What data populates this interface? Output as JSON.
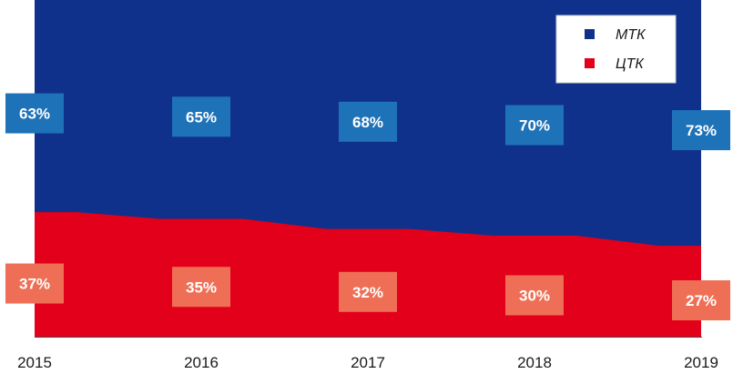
{
  "chart_data": {
    "type": "area",
    "stacked": true,
    "percent": true,
    "title": "",
    "xlabel": "",
    "ylabel": "",
    "ylim": [
      0,
      100
    ],
    "grid": false,
    "legend": "top-right",
    "x": [
      "2015",
      "2016",
      "2017",
      "2018",
      "2019"
    ],
    "series": [
      {
        "name": "ЦТК",
        "color": "#e2001a",
        "label_color": "#ee6f55",
        "values": [
          37,
          35,
          32,
          30,
          27
        ],
        "labels": [
          "37%",
          "35%",
          "32%",
          "30%",
          "27%"
        ]
      },
      {
        "name": "МТК",
        "color": "#10318b",
        "label_color": "#1e72b8",
        "values": [
          63,
          65,
          68,
          70,
          73
        ],
        "labels": [
          "63%",
          "65%",
          "68%",
          "70%",
          "73%"
        ]
      }
    ]
  }
}
